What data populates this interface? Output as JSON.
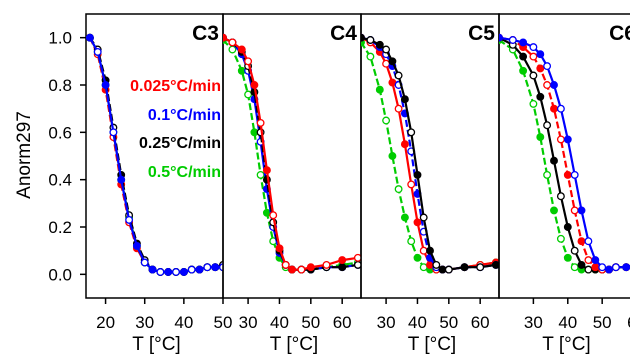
{
  "chart_data": {
    "type": "scatter",
    "ylabel": "Anorm297",
    "ylim": [
      -0.1,
      1.1
    ],
    "yticks": [
      "0.0",
      "0.2",
      "0.4",
      "0.6",
      "0.8",
      "1.0"
    ],
    "ytick_values": [
      0.0,
      0.2,
      0.4,
      0.6,
      0.8,
      1.0
    ],
    "rate_colors": {
      "0.025°C/min": "#ff0000",
      "0.1°C/min": "#0000ff",
      "0.25°C/min": "#000000",
      "0.5°C/min": "#00cc00"
    },
    "legend": [
      {
        "label": "0.025°C/min",
        "color": "#ff0000"
      },
      {
        "label": "0.1°C/min",
        "color": "#0000ff"
      },
      {
        "label": "0.25°C/min",
        "color": "#000000"
      },
      {
        "label": "0.5°C/min",
        "color": "#00cc00"
      }
    ],
    "panels": [
      {
        "name": "C3",
        "xlabel": "T [°C]",
        "xlim": [
          15,
          50
        ],
        "xticks": [
          20,
          30,
          40,
          50
        ],
        "series": [
          {
            "color": "#ff0000",
            "x": [
              16,
              18,
              20,
              22,
              24,
              26,
              28,
              30,
              32,
              34,
              36,
              38,
              40,
              42,
              44,
              46,
              48,
              50
            ],
            "y": [
              1.0,
              0.93,
              0.78,
              0.58,
              0.38,
              0.22,
              0.11,
              0.05,
              0.02,
              0.01,
              0.01,
              0.01,
              0.01,
              0.02,
              0.02,
              0.03,
              0.03,
              0.03
            ]
          },
          {
            "color": "#00cc00",
            "x": [
              16,
              18,
              20,
              22,
              24,
              26,
              28,
              30,
              32,
              34,
              36,
              38,
              40,
              42,
              44,
              46,
              48,
              50
            ],
            "y": [
              1.0,
              0.94,
              0.8,
              0.6,
              0.4,
              0.24,
              0.12,
              0.05,
              0.02,
              0.01,
              0.01,
              0.01,
              0.01,
              0.02,
              0.02,
              0.03,
              0.03,
              0.03
            ]
          },
          {
            "color": "#000000",
            "x": [
              16,
              18,
              20,
              22,
              24,
              26,
              28,
              30,
              32,
              34,
              36,
              38,
              40,
              42,
              44,
              46,
              48,
              50
            ],
            "y": [
              1.0,
              0.95,
              0.82,
              0.62,
              0.42,
              0.25,
              0.13,
              0.06,
              0.02,
              0.01,
              0.01,
              0.01,
              0.01,
              0.02,
              0.02,
              0.03,
              0.03,
              0.04
            ]
          },
          {
            "color": "#0000ff",
            "x": [
              16,
              18,
              20,
              22,
              24,
              26,
              28,
              30,
              32,
              34,
              36,
              38,
              40,
              42,
              44,
              46,
              48,
              50
            ],
            "y": [
              1.0,
              0.94,
              0.8,
              0.6,
              0.4,
              0.23,
              0.12,
              0.05,
              0.02,
              0.01,
              0.01,
              0.01,
              0.01,
              0.02,
              0.02,
              0.03,
              0.03,
              0.03
            ]
          }
        ]
      },
      {
        "name": "C4",
        "xlabel": "T [°C]",
        "xlim": [
          22,
          66
        ],
        "xticks": [
          30,
          40,
          50,
          60
        ],
        "series": [
          {
            "color": "#00cc00",
            "x": [
              22,
              25,
              28,
              30,
              32,
              34,
              36,
              38,
              40,
              42,
              44,
              47,
              50,
              55,
              60,
              65
            ],
            "y": [
              0.99,
              0.95,
              0.86,
              0.76,
              0.6,
              0.42,
              0.26,
              0.14,
              0.07,
              0.03,
              0.02,
              0.02,
              0.02,
              0.03,
              0.04,
              0.05
            ]
          },
          {
            "color": "#0000ff",
            "x": [
              22,
              25,
              28,
              30,
              32,
              34,
              36,
              38,
              40,
              42,
              44,
              47,
              50,
              55,
              60,
              65
            ],
            "y": [
              1.0,
              0.98,
              0.93,
              0.86,
              0.74,
              0.56,
              0.36,
              0.2,
              0.09,
              0.04,
              0.02,
              0.02,
              0.02,
              0.03,
              0.03,
              0.04
            ]
          },
          {
            "color": "#000000",
            "x": [
              22,
              25,
              28,
              30,
              32,
              34,
              36,
              38,
              40,
              42,
              44,
              47,
              50,
              55,
              60,
              65
            ],
            "y": [
              1.0,
              0.98,
              0.94,
              0.88,
              0.77,
              0.6,
              0.4,
              0.22,
              0.1,
              0.04,
              0.02,
              0.02,
              0.02,
              0.03,
              0.03,
              0.04
            ]
          },
          {
            "color": "#ff0000",
            "x": [
              22,
              25,
              28,
              30,
              32,
              34,
              36,
              38,
              40,
              42,
              44,
              47,
              50,
              55,
              60,
              65
            ],
            "y": [
              1.0,
              0.98,
              0.95,
              0.9,
              0.8,
              0.64,
              0.44,
              0.25,
              0.11,
              0.04,
              0.02,
              0.02,
              0.03,
              0.04,
              0.06,
              0.07
            ]
          }
        ]
      },
      {
        "name": "C5",
        "xlabel": "T [°C]",
        "xlim": [
          22,
          66
        ],
        "xticks": [
          30,
          40,
          50,
          60
        ],
        "series": [
          {
            "color": "#00cc00",
            "x": [
              22,
              25,
              28,
              30,
              32,
              34,
              36,
              38,
              40,
              42,
              44,
              46,
              48,
              50,
              55,
              60,
              65
            ],
            "y": [
              0.98,
              0.92,
              0.78,
              0.65,
              0.5,
              0.36,
              0.24,
              0.14,
              0.07,
              0.03,
              0.02,
              0.02,
              0.02,
              0.02,
              0.03,
              0.04,
              0.05
            ]
          },
          {
            "color": "#ff0000",
            "x": [
              22,
              25,
              28,
              30,
              32,
              34,
              36,
              38,
              40,
              42,
              44,
              46,
              48,
              50,
              55,
              60,
              65
            ],
            "y": [
              1.0,
              0.98,
              0.94,
              0.89,
              0.81,
              0.7,
              0.55,
              0.38,
              0.22,
              0.1,
              0.04,
              0.02,
              0.02,
              0.02,
              0.03,
              0.04,
              0.05
            ]
          },
          {
            "color": "#0000ff",
            "x": [
              22,
              25,
              28,
              30,
              32,
              34,
              36,
              38,
              40,
              42,
              44,
              46,
              48,
              50,
              55,
              60,
              65
            ],
            "y": [
              1.0,
              0.99,
              0.96,
              0.93,
              0.88,
              0.8,
              0.68,
              0.52,
              0.34,
              0.18,
              0.07,
              0.03,
              0.02,
              0.02,
              0.03,
              0.03,
              0.04
            ]
          },
          {
            "color": "#000000",
            "x": [
              22,
              25,
              28,
              30,
              32,
              34,
              36,
              38,
              40,
              42,
              44,
              46,
              48,
              50,
              55,
              60,
              65
            ],
            "y": [
              1.0,
              0.99,
              0.97,
              0.95,
              0.9,
              0.84,
              0.74,
              0.6,
              0.42,
              0.24,
              0.1,
              0.04,
              0.02,
              0.02,
              0.03,
              0.03,
              0.04
            ]
          }
        ]
      },
      {
        "name": "C6",
        "xlabel": "T [°C]",
        "xlim": [
          20,
          61
        ],
        "xticks": [
          30,
          40,
          50,
          60
        ],
        "series": [
          {
            "color": "#00cc00",
            "x": [
              20,
              24,
              27,
              30,
              32,
              34,
              36,
              38,
              40,
              42,
              44,
              46,
              48,
              50,
              52,
              54,
              57,
              60
            ],
            "y": [
              0.99,
              0.95,
              0.86,
              0.72,
              0.58,
              0.42,
              0.27,
              0.15,
              0.07,
              0.03,
              0.02,
              0.02,
              0.02,
              0.02,
              0.02,
              0.03,
              0.03,
              0.04
            ]
          },
          {
            "color": "#000000",
            "x": [
              20,
              24,
              27,
              30,
              32,
              34,
              36,
              38,
              40,
              42,
              44,
              46,
              48,
              50,
              52,
              54,
              57,
              60
            ],
            "y": [
              1.0,
              0.97,
              0.92,
              0.84,
              0.75,
              0.63,
              0.48,
              0.33,
              0.2,
              0.1,
              0.04,
              0.02,
              0.02,
              0.02,
              0.02,
              0.03,
              0.03,
              0.04
            ]
          },
          {
            "color": "#ff0000",
            "x": [
              20,
              24,
              27,
              30,
              32,
              34,
              36,
              38,
              40,
              42,
              44,
              46,
              48,
              50,
              52,
              54,
              57,
              60
            ],
            "y": [
              1.0,
              0.99,
              0.96,
              0.92,
              0.87,
              0.8,
              0.7,
              0.57,
              0.42,
              0.27,
              0.14,
              0.06,
              0.03,
              0.02,
              0.02,
              0.03,
              0.03,
              0.04
            ]
          },
          {
            "color": "#0000ff",
            "x": [
              20,
              24,
              27,
              30,
              32,
              34,
              36,
              38,
              40,
              42,
              44,
              46,
              48,
              50,
              52,
              54,
              57,
              60
            ],
            "y": [
              1.0,
              0.99,
              0.98,
              0.96,
              0.93,
              0.88,
              0.8,
              0.7,
              0.57,
              0.42,
              0.27,
              0.14,
              0.06,
              0.03,
              0.02,
              0.03,
              0.03,
              0.04
            ]
          }
        ]
      }
    ]
  }
}
